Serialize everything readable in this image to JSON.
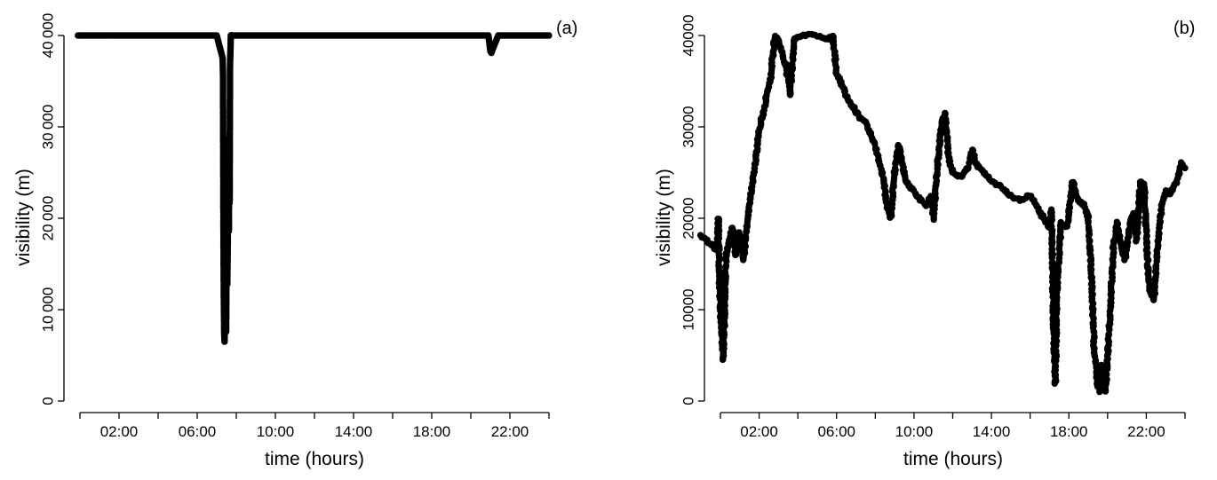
{
  "chart_data": [
    {
      "type": "scatter",
      "panel_label": "(a)",
      "xlabel": "time (hours)",
      "ylabel": "visibility (m)",
      "xlim": [
        0,
        24
      ],
      "ylim": [
        0,
        40000
      ],
      "x_ticks": [
        0,
        2,
        4,
        6,
        8,
        10,
        12,
        14,
        16,
        18,
        20,
        22,
        24
      ],
      "x_tick_labels": [
        {
          "x": 2,
          "label": "02:00"
        },
        {
          "x": 6,
          "label": "06:00"
        },
        {
          "x": 10,
          "label": "10:00"
        },
        {
          "x": 14,
          "label": "14:00"
        },
        {
          "x": 18,
          "label": "18:00"
        },
        {
          "x": 22,
          "label": "22:00"
        }
      ],
      "y_ticks": [
        0,
        10000,
        20000,
        30000,
        40000
      ],
      "y_tick_labels": [
        "0",
        "10 000",
        "20 000",
        "30 000",
        "40 000"
      ],
      "series": [
        {
          "x": [
            -0.1,
            0.25,
            0.75,
            1.25,
            1.75,
            2.25,
            2.75,
            3.25,
            3.75,
            4.25,
            4.75,
            5.25,
            5.75,
            6.25,
            6.75,
            7.0,
            7.3,
            7.32,
            7.34,
            7.36,
            7.38,
            7.4,
            7.42,
            7.44,
            7.46,
            7.48,
            7.5,
            7.52,
            7.54,
            7.56,
            7.58,
            7.6,
            7.62,
            7.64,
            7.66,
            7.68,
            7.7,
            7.72,
            7.74,
            7.76,
            7.78,
            7.82,
            8.0,
            8.5,
            9.0,
            9.5,
            10.0,
            10.5,
            11.0,
            11.5,
            12.0,
            12.5,
            13.0,
            13.5,
            14.0,
            14.5,
            15.0,
            15.5,
            16.0,
            16.5,
            17.0,
            17.5,
            18.0,
            18.5,
            19.0,
            19.5,
            20.0,
            20.5,
            20.9,
            21.0,
            21.05,
            21.4,
            22.0,
            22.5,
            23.0,
            23.5,
            24.0
          ],
          "y": [
            40000,
            40000,
            40000,
            40000,
            40000,
            40000,
            40000,
            40000,
            40000,
            40000,
            40000,
            40000,
            40000,
            40000,
            40000,
            40000,
            37500,
            36000,
            19800,
            11700,
            7500,
            6500,
            10200,
            10500,
            11100,
            7600,
            14500,
            17200,
            12800,
            16700,
            22700,
            21500,
            18600,
            28800,
            21700,
            36800,
            38300,
            40000,
            40000,
            40000,
            40000,
            40000,
            40000,
            40000,
            40000,
            40000,
            40000,
            40000,
            40000,
            40000,
            40000,
            40000,
            40000,
            40000,
            40000,
            40000,
            40000,
            40000,
            40000,
            40000,
            40000,
            40000,
            40000,
            40000,
            40000,
            40000,
            40000,
            40000,
            40000,
            38300,
            38100,
            40000,
            40000,
            40000,
            40000,
            40000,
            40000
          ]
        }
      ]
    },
    {
      "type": "scatter",
      "panel_label": "(b)",
      "xlabel": "time (hours)",
      "ylabel": "visibility (m)",
      "xlim": [
        0,
        24
      ],
      "ylim": [
        0,
        40000
      ],
      "x_ticks": [
        0,
        2,
        4,
        6,
        8,
        10,
        12,
        14,
        16,
        18,
        20,
        22,
        24
      ],
      "x_tick_labels": [
        {
          "x": 2,
          "label": "02:00"
        },
        {
          "x": 6,
          "label": "06:00"
        },
        {
          "x": 10,
          "label": "10:00"
        },
        {
          "x": 14,
          "label": "14:00"
        },
        {
          "x": 18,
          "label": "18:00"
        },
        {
          "x": 22,
          "label": "22:00"
        }
      ],
      "y_ticks": [
        0,
        10000,
        20000,
        30000,
        40000
      ],
      "y_tick_labels": [
        "0",
        "10000",
        "20000",
        "30000",
        "40000"
      ],
      "series": [
        {
          "x": [
            -1.0,
            -0.7,
            -0.4,
            -0.2,
            -0.1,
            -0.05,
            0.05,
            0.15,
            0.3,
            0.45,
            0.6,
            0.8,
            1.0,
            1.2,
            1.4,
            1.6,
            1.8,
            2.0,
            2.2,
            2.4,
            2.6,
            2.8,
            3.0,
            3.2,
            3.4,
            3.6,
            3.8,
            4.0,
            4.5,
            5.0,
            5.5,
            5.8,
            6.0,
            6.3,
            6.6,
            6.9,
            7.2,
            7.5,
            7.8,
            8.1,
            8.4,
            8.6,
            8.8,
            9.0,
            9.2,
            9.4,
            9.6,
            9.8,
            10.0,
            10.3,
            10.6,
            10.9,
            11.0,
            11.2,
            11.4,
            11.6,
            11.8,
            12.0,
            12.4,
            12.8,
            13.0,
            13.2,
            13.6,
            14.0,
            14.5,
            15.0,
            15.5,
            16.0,
            16.4,
            16.7,
            17.0,
            17.1,
            17.2,
            17.3,
            17.4,
            17.6,
            17.9,
            18.2,
            18.5,
            18.8,
            19.0,
            19.1,
            19.2,
            19.3,
            19.4,
            19.5,
            19.6,
            19.7,
            19.9,
            20.1,
            20.3,
            20.5,
            20.7,
            20.9,
            21.1,
            21.3,
            21.5,
            21.7,
            21.9,
            22.0,
            22.1,
            22.2,
            22.4,
            22.6,
            22.8,
            23.0,
            23.2,
            23.4,
            23.6,
            23.8,
            24.0
          ],
          "y": [
            18000,
            17500,
            17000,
            16500,
            20000,
            13000,
            7500,
            4500,
            16000,
            17500,
            19000,
            16000,
            18500,
            15500,
            20000,
            23000,
            26000,
            29500,
            31500,
            33500,
            35500,
            40000,
            39500,
            38000,
            36500,
            33500,
            39500,
            40000,
            40000,
            40000,
            39500,
            40000,
            36000,
            34500,
            33000,
            32000,
            31000,
            30500,
            29000,
            27000,
            24500,
            21500,
            20000,
            25000,
            28000,
            26000,
            24000,
            23500,
            23000,
            22000,
            21500,
            22500,
            20000,
            25500,
            30000,
            31500,
            26500,
            25000,
            24500,
            25500,
            27500,
            26000,
            25000,
            24000,
            23500,
            22500,
            22000,
            22500,
            21000,
            20000,
            19000,
            21000,
            8500,
            2000,
            13000,
            19500,
            19000,
            24000,
            22000,
            21500,
            20000,
            16500,
            12000,
            6000,
            3500,
            1500,
            1000,
            4000,
            1000,
            8500,
            17000,
            19500,
            17000,
            15500,
            18500,
            20500,
            17500,
            24000,
            23500,
            18000,
            14000,
            12000,
            11000,
            17500,
            21500,
            23000,
            22500,
            23500,
            24000,
            26000,
            25500
          ]
        }
      ]
    }
  ]
}
